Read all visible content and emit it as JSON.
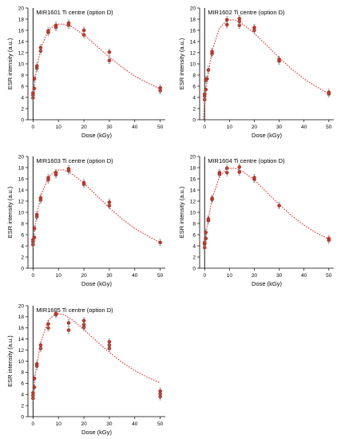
{
  "chart_data": [
    {
      "type": "scatter",
      "title": "MIR1601 Ti centre (option D)",
      "xlabel": "Dose (kGy)",
      "ylabel": "ESR intensity (a.u.)",
      "xlim": [
        -2,
        52
      ],
      "ylim": [
        0,
        20
      ],
      "xticks": [
        0,
        10,
        20,
        30,
        40,
        50
      ],
      "yticks": [
        0,
        2,
        4,
        6,
        8,
        10,
        12,
        14,
        16,
        18,
        20
      ],
      "grid": false,
      "marker_color": "#c0392b",
      "fit_color": "#e03030",
      "points": [
        {
          "x": 0,
          "y": 3.9
        },
        {
          "x": 0,
          "y": 4.4
        },
        {
          "x": 0,
          "y": 4.8
        },
        {
          "x": 0.5,
          "y": 5.6
        },
        {
          "x": 0.5,
          "y": 7.3
        },
        {
          "x": 1.5,
          "y": 9.2
        },
        {
          "x": 1.5,
          "y": 9.6
        },
        {
          "x": 3,
          "y": 12.3
        },
        {
          "x": 3,
          "y": 12.9
        },
        {
          "x": 6,
          "y": 15.6
        },
        {
          "x": 6,
          "y": 15.9
        },
        {
          "x": 9,
          "y": 16.5
        },
        {
          "x": 9,
          "y": 16.9
        },
        {
          "x": 14,
          "y": 16.9
        },
        {
          "x": 14,
          "y": 17.3
        },
        {
          "x": 20,
          "y": 15.2
        },
        {
          "x": 20,
          "y": 16.0
        },
        {
          "x": 30,
          "y": 10.6
        },
        {
          "x": 30,
          "y": 12.1
        },
        {
          "x": 50,
          "y": 5.2
        },
        {
          "x": 50,
          "y": 5.7
        }
      ],
      "fit": {
        "x": [
          0,
          1,
          3,
          6,
          9,
          12,
          15,
          20,
          25,
          30,
          35,
          40,
          45,
          50
        ],
        "y": [
          3.9,
          8.0,
          12.8,
          16.0,
          17.1,
          17.1,
          16.7,
          15.2,
          13.2,
          11.2,
          9.4,
          7.8,
          6.6,
          5.5
        ]
      }
    },
    {
      "type": "scatter",
      "title": "MIR1602 Ti centre (option D)",
      "xlabel": "Dose (kGy)",
      "ylabel": "ESR intensity (a.u.)",
      "xlim": [
        -2,
        52
      ],
      "ylim": [
        0,
        20
      ],
      "xticks": [
        0,
        10,
        20,
        30,
        40,
        50
      ],
      "yticks": [
        0,
        2,
        4,
        6,
        8,
        10,
        12,
        14,
        16,
        18,
        20
      ],
      "grid": false,
      "marker_color": "#c0392b",
      "fit_color": "#e03030",
      "points": [
        {
          "x": 0,
          "y": 3.6
        },
        {
          "x": 0,
          "y": 4.2
        },
        {
          "x": 0,
          "y": 4.6
        },
        {
          "x": 0.5,
          "y": 5.4
        },
        {
          "x": 0.5,
          "y": 7.1
        },
        {
          "x": 1,
          "y": 7.3
        },
        {
          "x": 1.5,
          "y": 8.9
        },
        {
          "x": 3,
          "y": 11.8
        },
        {
          "x": 3,
          "y": 12.2
        },
        {
          "x": 9,
          "y": 17.0
        },
        {
          "x": 9,
          "y": 17.9
        },
        {
          "x": 14,
          "y": 16.9
        },
        {
          "x": 14,
          "y": 17.6
        },
        {
          "x": 14,
          "y": 18.1
        },
        {
          "x": 20,
          "y": 16.0
        },
        {
          "x": 20,
          "y": 16.5
        },
        {
          "x": 30,
          "y": 10.5
        },
        {
          "x": 30,
          "y": 10.8
        },
        {
          "x": 50,
          "y": 4.6
        },
        {
          "x": 50,
          "y": 4.9
        }
      ],
      "fit": {
        "x": [
          -0.5,
          0,
          1,
          3,
          6,
          9,
          12,
          15,
          20,
          25,
          30,
          35,
          40,
          45,
          50
        ],
        "y": [
          0,
          3.6,
          7.0,
          12.4,
          16.4,
          17.8,
          17.9,
          17.2,
          15.5,
          13.3,
          11.1,
          9.1,
          7.3,
          5.9,
          4.7
        ]
      }
    },
    {
      "type": "scatter",
      "title": "MIR1603 Ti centre (option D)",
      "xlabel": "Dose (kGy)",
      "ylabel": "ESR intensity (a.u.)",
      "xlim": [
        -2,
        52
      ],
      "ylim": [
        0,
        20
      ],
      "xticks": [
        0,
        10,
        20,
        30,
        40,
        50
      ],
      "yticks": [
        0,
        2,
        4,
        6,
        8,
        10,
        12,
        14,
        16,
        18,
        20
      ],
      "grid": false,
      "marker_color": "#c0392b",
      "fit_color": "#e03030",
      "points": [
        {
          "x": 0,
          "y": 4.2
        },
        {
          "x": 0,
          "y": 4.7
        },
        {
          "x": 0,
          "y": 5.1
        },
        {
          "x": 0.5,
          "y": 5.5
        },
        {
          "x": 0.5,
          "y": 7.1
        },
        {
          "x": 1.5,
          "y": 9.2
        },
        {
          "x": 1.5,
          "y": 9.6
        },
        {
          "x": 3,
          "y": 12.2
        },
        {
          "x": 3,
          "y": 12.6
        },
        {
          "x": 6,
          "y": 15.8
        },
        {
          "x": 6,
          "y": 16.2
        },
        {
          "x": 9,
          "y": 16.7
        },
        {
          "x": 9,
          "y": 17.1
        },
        {
          "x": 14,
          "y": 17.4
        },
        {
          "x": 14,
          "y": 17.8
        },
        {
          "x": 20,
          "y": 15.0
        },
        {
          "x": 20,
          "y": 15.3
        },
        {
          "x": 30,
          "y": 11.2
        },
        {
          "x": 30,
          "y": 11.8
        },
        {
          "x": 50,
          "y": 4.6
        }
      ],
      "fit": {
        "x": [
          0,
          1,
          3,
          6,
          9,
          12,
          15,
          20,
          25,
          30,
          35,
          40,
          45,
          50
        ],
        "y": [
          4.2,
          8.2,
          12.9,
          16.3,
          17.5,
          17.6,
          17.0,
          15.2,
          13.0,
          10.8,
          8.8,
          7.1,
          5.8,
          4.6
        ]
      }
    },
    {
      "type": "scatter",
      "title": "MIR1604 Ti centre (option D)",
      "xlabel": "Dose (kGy)",
      "ylabel": "ESR intensity (a.u.)",
      "xlim": [
        -2,
        52
      ],
      "ylim": [
        0,
        20
      ],
      "xticks": [
        0,
        10,
        20,
        30,
        40,
        50
      ],
      "yticks": [
        0,
        2,
        4,
        6,
        8,
        10,
        12,
        14,
        16,
        18,
        20
      ],
      "grid": false,
      "marker_color": "#c0392b",
      "fit_color": "#e03030",
      "points": [
        {
          "x": 0,
          "y": 3.7
        },
        {
          "x": 0,
          "y": 4.3
        },
        {
          "x": 0,
          "y": 4.6
        },
        {
          "x": 0.5,
          "y": 5.3
        },
        {
          "x": 0.5,
          "y": 6.4
        },
        {
          "x": 1.5,
          "y": 8.5
        },
        {
          "x": 1.5,
          "y": 8.8
        },
        {
          "x": 3,
          "y": 12.3
        },
        {
          "x": 3,
          "y": 12.5
        },
        {
          "x": 6,
          "y": 16.8
        },
        {
          "x": 6,
          "y": 17.1
        },
        {
          "x": 9,
          "y": 17.1
        },
        {
          "x": 9,
          "y": 17.9
        },
        {
          "x": 14,
          "y": 17.2
        },
        {
          "x": 14,
          "y": 18.1
        },
        {
          "x": 20,
          "y": 15.9
        },
        {
          "x": 20,
          "y": 16.2
        },
        {
          "x": 30,
          "y": 11.2
        },
        {
          "x": 50,
          "y": 5.0
        },
        {
          "x": 50,
          "y": 5.3
        }
      ],
      "fit": {
        "x": [
          0,
          1,
          3,
          6,
          9,
          12,
          15,
          20,
          25,
          30,
          35,
          40,
          45,
          50
        ],
        "y": [
          3.7,
          7.5,
          12.4,
          16.4,
          17.8,
          17.9,
          17.4,
          15.8,
          13.6,
          11.4,
          9.4,
          7.7,
          6.3,
          5.2
        ]
      }
    },
    {
      "type": "scatter",
      "title": "MIR1605 Ti centre (option D)",
      "xlabel": "Dose (kGy)",
      "ylabel": "ESR intensity (a.u.)",
      "xlim": [
        -2,
        52
      ],
      "ylim": [
        0,
        20
      ],
      "xticks": [
        0,
        10,
        20,
        30,
        40,
        50
      ],
      "yticks": [
        0,
        2,
        4,
        6,
        8,
        10,
        12,
        14,
        16,
        18,
        20
      ],
      "grid": false,
      "marker_color": "#c0392b",
      "fit_color": "#e03030",
      "points": [
        {
          "x": 0,
          "y": 3.3
        },
        {
          "x": 0,
          "y": 3.8
        },
        {
          "x": 0,
          "y": 4.3
        },
        {
          "x": 0.5,
          "y": 5.3
        },
        {
          "x": 0.5,
          "y": 6.9
        },
        {
          "x": 1.5,
          "y": 9.1
        },
        {
          "x": 1.5,
          "y": 9.5
        },
        {
          "x": 3,
          "y": 12.3
        },
        {
          "x": 3,
          "y": 12.9
        },
        {
          "x": 6,
          "y": 16.0
        },
        {
          "x": 6,
          "y": 16.7
        },
        {
          "x": 9,
          "y": 18.4
        },
        {
          "x": 9,
          "y": 18.6
        },
        {
          "x": 14,
          "y": 15.6
        },
        {
          "x": 14,
          "y": 16.9
        },
        {
          "x": 20,
          "y": 16.1
        },
        {
          "x": 20,
          "y": 16.6
        },
        {
          "x": 20,
          "y": 17.3
        },
        {
          "x": 30,
          "y": 12.3
        },
        {
          "x": 30,
          "y": 12.9
        },
        {
          "x": 30,
          "y": 13.5
        },
        {
          "x": 50,
          "y": 3.6
        },
        {
          "x": 50,
          "y": 4.1
        },
        {
          "x": 50,
          "y": 4.6
        }
      ],
      "fit": {
        "x": [
          0,
          1,
          3,
          6,
          9,
          12,
          15,
          20,
          25,
          30,
          35,
          40,
          45,
          50
        ],
        "y": [
          3.3,
          8.0,
          13.4,
          17.4,
          18.6,
          18.4,
          17.6,
          15.7,
          13.6,
          11.6,
          9.8,
          8.3,
          7.1,
          6.1
        ]
      }
    }
  ]
}
